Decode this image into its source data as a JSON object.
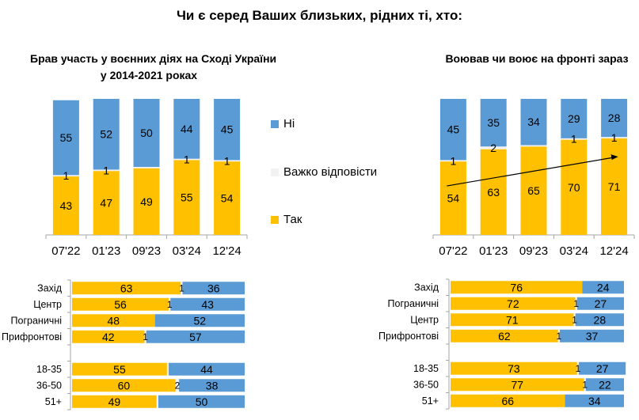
{
  "title": "Чи є серед Ваших близьких, рідних ті, хто:",
  "legend": [
    {
      "label": "Ні",
      "color": "#5B9BD5"
    },
    {
      "label": "Важко відповісти",
      "color": "#F2F2F2"
    },
    {
      "label": "Так",
      "color": "#FFC000"
    }
  ],
  "chart_data": [
    {
      "type": "bar",
      "stacked": true,
      "title_lines": [
        "Брав участь у воєнних діях на Сході України",
        "у 2014-2021 роках"
      ],
      "categories": [
        "07'22",
        "01'23",
        "09'23",
        "03'24",
        "12'24"
      ],
      "series": [
        {
          "name": "Так",
          "values": [
            43,
            47,
            49,
            55,
            54
          ]
        },
        {
          "name": "Важко відповісти",
          "values": [
            1,
            1,
            null,
            1,
            1
          ]
        },
        {
          "name": "Ні",
          "values": [
            55,
            52,
            50,
            44,
            45
          ]
        }
      ],
      "ylim": [
        0,
        100
      ]
    },
    {
      "type": "bar",
      "stacked": true,
      "title_lines": [
        "Воював чи воює на фронті зараз"
      ],
      "categories": [
        "07'22",
        "01'23",
        "09'23",
        "03'24",
        "12'24"
      ],
      "series": [
        {
          "name": "Так",
          "values": [
            54,
            63,
            65,
            70,
            71
          ]
        },
        {
          "name": "Важко відповісти",
          "values": [
            1,
            2,
            null,
            1,
            1
          ]
        },
        {
          "name": "Ні",
          "values": [
            45,
            35,
            34,
            29,
            28
          ]
        }
      ],
      "trend_arrow": true,
      "ylim": [
        0,
        100
      ]
    },
    {
      "type": "bar",
      "orientation": "horizontal",
      "stacked": true,
      "categories": [
        "Захід",
        "Центр",
        "Пограничні",
        "Прифронтові",
        "",
        "18-35",
        "36-50",
        "51+"
      ],
      "series": [
        {
          "name": "Так",
          "values": [
            63,
            56,
            48,
            42,
            null,
            55,
            60,
            49
          ]
        },
        {
          "name": "Важко відповісти",
          "values": [
            1,
            1,
            null,
            1,
            null,
            null,
            2,
            null
          ]
        },
        {
          "name": "Ні",
          "values": [
            36,
            43,
            52,
            57,
            null,
            44,
            38,
            50
          ]
        }
      ]
    },
    {
      "type": "bar",
      "orientation": "horizontal",
      "stacked": true,
      "categories": [
        "Захід",
        "Пограничні",
        "Центр",
        "Прифронтові",
        "",
        "18-35",
        "36-50",
        "51+"
      ],
      "series": [
        {
          "name": "Так",
          "values": [
            76,
            72,
            71,
            62,
            null,
            73,
            77,
            66
          ]
        },
        {
          "name": "Важко відповісти",
          "values": [
            null,
            1,
            1,
            1,
            null,
            1,
            1,
            null
          ]
        },
        {
          "name": "Ні",
          "values": [
            24,
            27,
            28,
            37,
            null,
            27,
            22,
            34
          ]
        }
      ]
    }
  ]
}
